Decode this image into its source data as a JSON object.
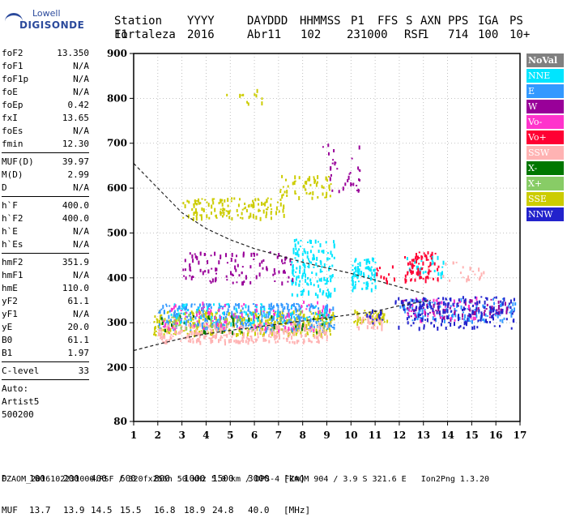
{
  "logo": {
    "line1": "Lowell",
    "line2": "DIGISONDE"
  },
  "header": {
    "labels": [
      "Station",
      "YYYY",
      "DAY",
      "DDD",
      "HHMMSS",
      "P1",
      "FFS",
      "S",
      "AXN",
      "PPS",
      "IGA",
      "PS"
    ],
    "values": [
      "Fortaleza",
      "2016",
      "Abr11",
      "102",
      "231000",
      "RSF",
      "1",
      "714",
      "100",
      "10+",
      "11"
    ]
  },
  "parameters": [
    [
      {
        "name": "foF2",
        "value": "13.350"
      },
      {
        "name": "foF1",
        "value": "N/A"
      },
      {
        "name": "foF1p",
        "value": "N/A"
      },
      {
        "name": "foE",
        "value": "N/A"
      },
      {
        "name": "foEp",
        "value": "0.42"
      },
      {
        "name": "fxI",
        "value": "13.65"
      },
      {
        "name": "foEs",
        "value": "N/A"
      },
      {
        "name": "fmin",
        "value": "12.30"
      }
    ],
    [
      {
        "name": "MUF(D)",
        "value": "39.97"
      },
      {
        "name": "M(D)",
        "value": "2.99"
      },
      {
        "name": "D",
        "value": "N/A"
      }
    ],
    [
      {
        "name": "h`F",
        "value": "400.0"
      },
      {
        "name": "h`F2",
        "value": "400.0"
      },
      {
        "name": "h`E",
        "value": "N/A"
      },
      {
        "name": "h`Es",
        "value": "N/A"
      }
    ],
    [
      {
        "name": "hmF2",
        "value": "351.9"
      },
      {
        "name": "hmF1",
        "value": "N/A"
      },
      {
        "name": "hmE",
        "value": "110.0"
      },
      {
        "name": "yF2",
        "value": "61.1"
      },
      {
        "name": "yF1",
        "value": "N/A"
      },
      {
        "name": "yE",
        "value": "20.0"
      },
      {
        "name": "B0",
        "value": "61.1"
      },
      {
        "name": "B1",
        "value": "1.97"
      }
    ],
    [
      {
        "name": "C-level",
        "value": "33"
      }
    ]
  ],
  "auto": [
    "Auto:",
    "Artist5",
    "500200"
  ],
  "colors": {
    "NoVal": "#808080",
    "NNE": "#00e5ff",
    "E": "#3399ff",
    "W": "#990099",
    "Vo-": "#ff33cc",
    "Vo+": "#ff0033",
    "SSW": "#ffb3b3",
    "X-": "#007700",
    "X+": "#88cc66",
    "SSE": "#cccc00",
    "NNW": "#2222cc"
  },
  "chart_data": {
    "type": "scatter",
    "xlim": [
      1,
      17
    ],
    "ylim": [
      80,
      900
    ],
    "x_ticks": [
      1,
      2,
      3,
      4,
      5,
      6,
      7,
      8,
      9,
      10,
      11,
      12,
      13,
      14,
      15,
      16,
      17
    ],
    "y_ticks": [
      80,
      200,
      300,
      400,
      500,
      600,
      700,
      800,
      900
    ],
    "grid": true,
    "legend_position": "right",
    "legend": [
      "NoVal",
      "NNE",
      "E",
      "W",
      "Vo-",
      "Vo+",
      "SSW",
      "X-",
      "X+",
      "SSE",
      "NNW"
    ],
    "series": [
      {
        "name": "SSE",
        "clusters": [
          {
            "x": [
              1.8,
              9.3
            ],
            "y": [
              275,
              330
            ],
            "count": 420
          },
          {
            "x": [
              3.0,
              7.2
            ],
            "y": [
              535,
              580
            ],
            "count": 140
          },
          {
            "x": [
              7.0,
              9.2
            ],
            "y": [
              580,
              630
            ],
            "count": 60
          },
          {
            "x": [
              4.8,
              6.5
            ],
            "y": [
              790,
              830
            ],
            "count": 12
          },
          {
            "x": [
              10.1,
              11.5
            ],
            "y": [
              300,
              330
            ],
            "count": 60
          }
        ]
      },
      {
        "name": "E",
        "clusters": [
          {
            "x": [
              2.0,
              9.3
            ],
            "y": [
              285,
              345
            ],
            "count": 360
          },
          {
            "x": [
              12.0,
              16.8
            ],
            "y": [
              305,
              355
            ],
            "count": 140
          }
        ]
      },
      {
        "name": "SSW",
        "clusters": [
          {
            "x": [
              2.0,
              9.0
            ],
            "y": [
              258,
              300
            ],
            "count": 300
          },
          {
            "x": [
              10.2,
              11.3
            ],
            "y": [
              290,
              320
            ],
            "count": 30
          },
          {
            "x": [
              12.5,
              15.5
            ],
            "y": [
              395,
              440
            ],
            "count": 30
          }
        ]
      },
      {
        "name": "NNE",
        "clusters": [
          {
            "x": [
              7.5,
              9.3
            ],
            "y": [
              360,
              490
            ],
            "count": 150
          },
          {
            "x": [
              10.0,
              11.0
            ],
            "y": [
              375,
              450
            ],
            "count": 80
          },
          {
            "x": [
              12.3,
              13.8
            ],
            "y": [
              400,
              450
            ],
            "count": 30
          },
          {
            "x": [
              2.5,
              9.0
            ],
            "y": [
              300,
              345
            ],
            "count": 80
          }
        ]
      },
      {
        "name": "W",
        "clusters": [
          {
            "x": [
              3.0,
              7.6
            ],
            "y": [
              390,
              460
            ],
            "count": 110
          },
          {
            "x": [
              8.8,
              10.4
            ],
            "y": [
              595,
              700
            ],
            "count": 35
          },
          {
            "x": [
              12.0,
              16.5
            ],
            "y": [
              310,
              355
            ],
            "count": 80
          }
        ]
      },
      {
        "name": "Vo-",
        "clusters": [
          {
            "x": [
              2.0,
              9.2
            ],
            "y": [
              285,
              350
            ],
            "count": 90
          },
          {
            "x": [
              12.3,
              15.3
            ],
            "y": [
              305,
              360
            ],
            "count": 35
          }
        ]
      },
      {
        "name": "Vo+",
        "clusters": [
          {
            "x": [
              12.2,
              13.6
            ],
            "y": [
              395,
              460
            ],
            "count": 80
          },
          {
            "x": [
              11.0,
              11.8
            ],
            "y": [
              390,
              440
            ],
            "count": 12
          }
        ]
      },
      {
        "name": "X-",
        "clusters": [
          {
            "x": [
              2.0,
              9.0
            ],
            "y": [
              280,
              320
            ],
            "count": 30
          }
        ]
      },
      {
        "name": "X+",
        "clusters": [
          {
            "x": [
              2.0,
              9.0
            ],
            "y": [
              285,
              330
            ],
            "count": 30
          }
        ]
      },
      {
        "name": "NNW",
        "clusters": [
          {
            "x": [
              11.8,
              16.8
            ],
            "y": [
              290,
              360
            ],
            "count": 170
          },
          {
            "x": [
              10.6,
              11.3
            ],
            "y": [
              300,
              330
            ],
            "count": 15
          }
        ]
      }
    ],
    "dashed_curves": [
      {
        "x": [
          1,
          2,
          3,
          4,
          5,
          6,
          7,
          8,
          9,
          10,
          11,
          12,
          13
        ],
        "y": [
          655,
          600,
          545,
          510,
          485,
          465,
          450,
          435,
          422,
          410,
          395,
          380,
          365
        ]
      },
      {
        "x": [
          1,
          2,
          3,
          4,
          5,
          6,
          7,
          8,
          9,
          10,
          11,
          12,
          13.3
        ],
        "y": [
          238,
          252,
          265,
          275,
          283,
          290,
          297,
          304,
          311,
          318,
          325,
          338,
          350
        ]
      }
    ]
  },
  "bottom_lines": {
    "d_label": "D",
    "d_values": [
      "100",
      "200",
      "400",
      "600",
      "800",
      "1000",
      "1500",
      "3000",
      "[km]"
    ],
    "muf_label": "MUF",
    "muf_values": [
      "13.7",
      "13.9",
      "14.5",
      "15.5",
      "16.8",
      "18.9",
      "24.8",
      "40.0",
      "[MHz]"
    ]
  },
  "footer": "FZAOM_2016102231000.RSF / 320fx256h 50 kHz 5.0 km / DPS-4 FZAOM 904 / 3.9 S 321.6 E   Ion2Png 1.3.20"
}
